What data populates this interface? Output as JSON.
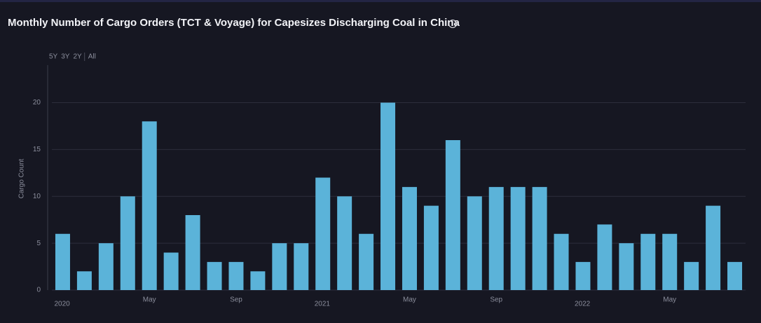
{
  "chart_data": {
    "type": "bar",
    "title": "Monthly Number of Cargo Orders (TCT & Voyage) for Capesizes Discharging Coal in China",
    "y_label": "Cargo Count",
    "categories": [
      "2020",
      null,
      null,
      null,
      "May",
      null,
      null,
      null,
      "Sep",
      null,
      null,
      null,
      "2021",
      null,
      null,
      null,
      "May",
      null,
      null,
      null,
      "Sep",
      null,
      null,
      null,
      "2022",
      null,
      null,
      null,
      "May",
      null,
      null,
      null
    ],
    "values": [
      6,
      2,
      5,
      10,
      18,
      4,
      8,
      3,
      3,
      2,
      5,
      5,
      12,
      10,
      6,
      20,
      11,
      9,
      16,
      10,
      11,
      11,
      11,
      6,
      3,
      7,
      5,
      6,
      6,
      3,
      9,
      3
    ],
    "color": "#5bb3d9",
    "ylim": [
      0,
      24
    ],
    "yticks": [
      0,
      5,
      10,
      15,
      20
    ],
    "grid": true
  },
  "controls": {
    "range_buttons": [
      "5Y",
      "3Y",
      "2Y",
      "All"
    ]
  }
}
